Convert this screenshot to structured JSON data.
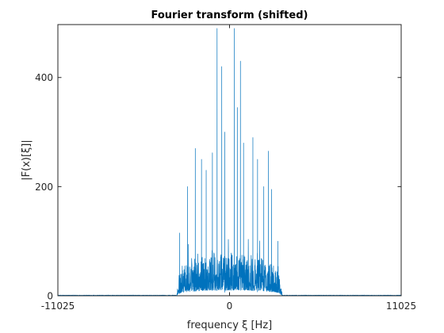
{
  "chart_data": {
    "type": "line",
    "title": "Fourier transform (shifted)",
    "xlabel": "frequency ξ [Hz]",
    "ylabel": "|F(x)[ξ]|",
    "xlim": [
      -11025,
      11025
    ],
    "ylim": [
      0,
      497
    ],
    "x_ticks": [
      -11025,
      0,
      11025
    ],
    "x_tick_labels": [
      "-11025",
      "0",
      "11025"
    ],
    "y_ticks": [
      0,
      200,
      400
    ],
    "y_tick_labels": [
      "0",
      "200",
      "400"
    ],
    "grid": false,
    "legend": "none",
    "series": [
      {
        "color": "#0072bd",
        "band_limit_hz": 3400,
        "peaks": [
          {
            "x": -800,
            "y": 490
          },
          {
            "x": 300,
            "y": 490
          },
          {
            "x": -500,
            "y": 420
          },
          {
            "x": 700,
            "y": 430
          },
          {
            "x": 500,
            "y": 345
          },
          {
            "x": -300,
            "y": 300
          },
          {
            "x": 900,
            "y": 280
          },
          {
            "x": -1100,
            "y": 262
          },
          {
            "x": 1500,
            "y": 290
          },
          {
            "x": -1500,
            "y": 230
          },
          {
            "x": -2200,
            "y": 270
          },
          {
            "x": 1800,
            "y": 250
          },
          {
            "x": 2500,
            "y": 265
          },
          {
            "x": -1800,
            "y": 250
          },
          {
            "x": -2700,
            "y": 200
          },
          {
            "x": 2200,
            "y": 200
          },
          {
            "x": 2700,
            "y": 195
          },
          {
            "x": -3200,
            "y": 115
          },
          {
            "x": 3100,
            "y": 100
          }
        ]
      }
    ]
  }
}
